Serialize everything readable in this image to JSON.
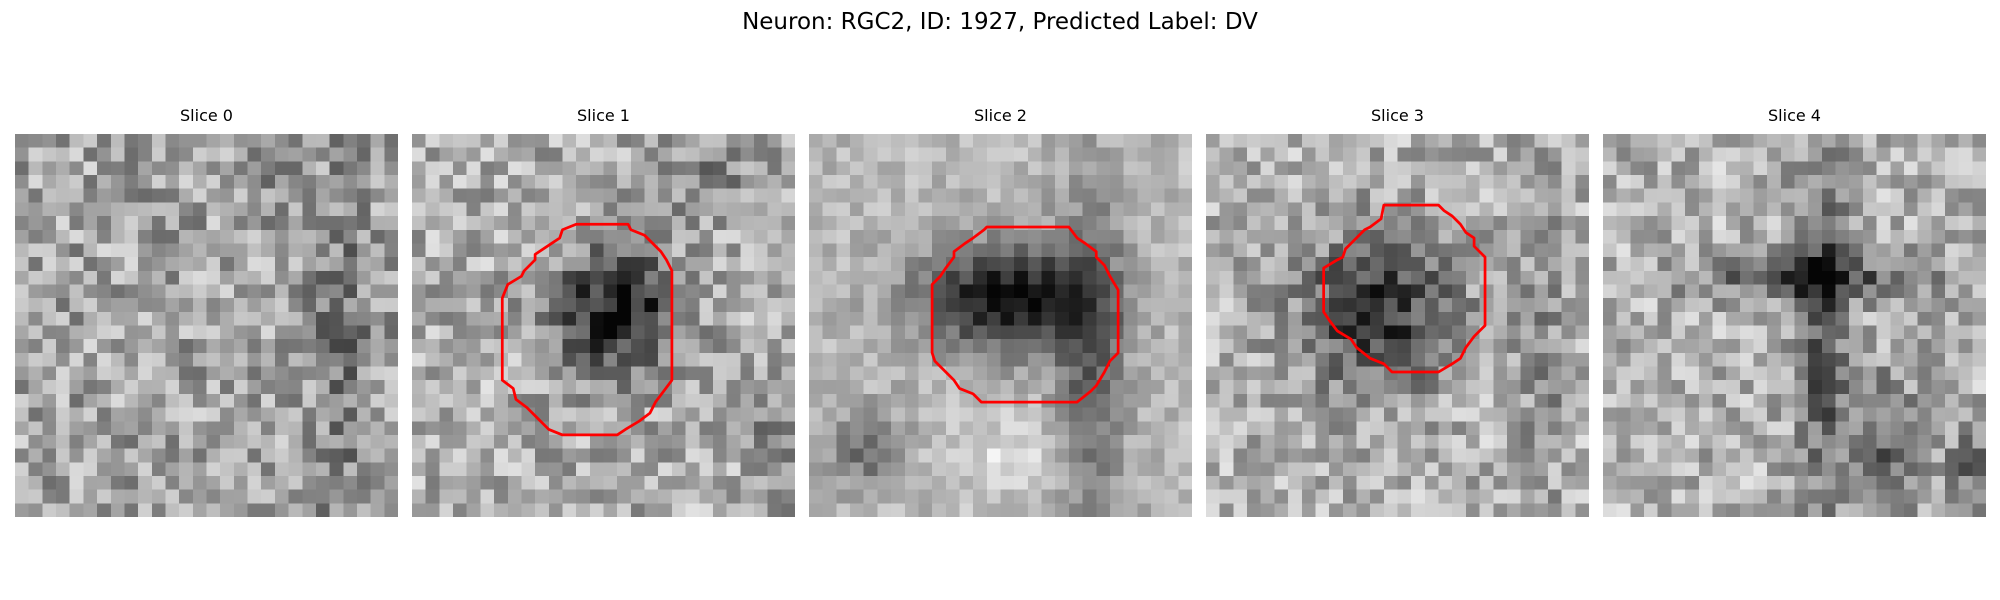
{
  "figure": {
    "title": "Neuron: RGC2, ID: 1927, Predicted Label: DV",
    "colormap": "gray",
    "grid_size": 28,
    "outline_color": "#ff0000",
    "slices": [
      {
        "label": "Slice 0",
        "has_outline": false
      },
      {
        "label": "Slice 1",
        "has_outline": true
      },
      {
        "label": "Slice 2",
        "has_outline": true
      },
      {
        "label": "Slice 3",
        "has_outline": true
      },
      {
        "label": "Slice 4",
        "has_outline": false
      }
    ]
  }
}
